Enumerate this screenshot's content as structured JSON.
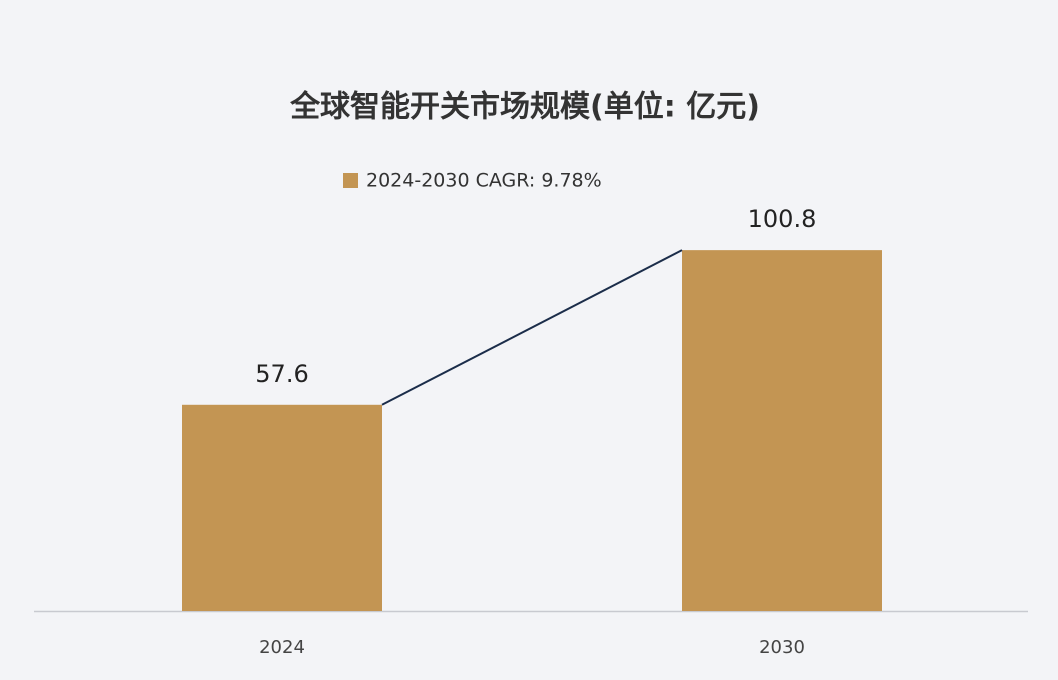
{
  "chart_data": {
    "type": "bar",
    "title": "全球智能开关市场规模(单位: 亿元)",
    "categories": [
      "2024",
      "2030"
    ],
    "series": [
      {
        "name": "2024-2030 CAGR: 9.78%",
        "color": "#c39553",
        "values": [
          57.6,
          100.8
        ]
      }
    ],
    "connector_color": "#1b2d4a"
  }
}
